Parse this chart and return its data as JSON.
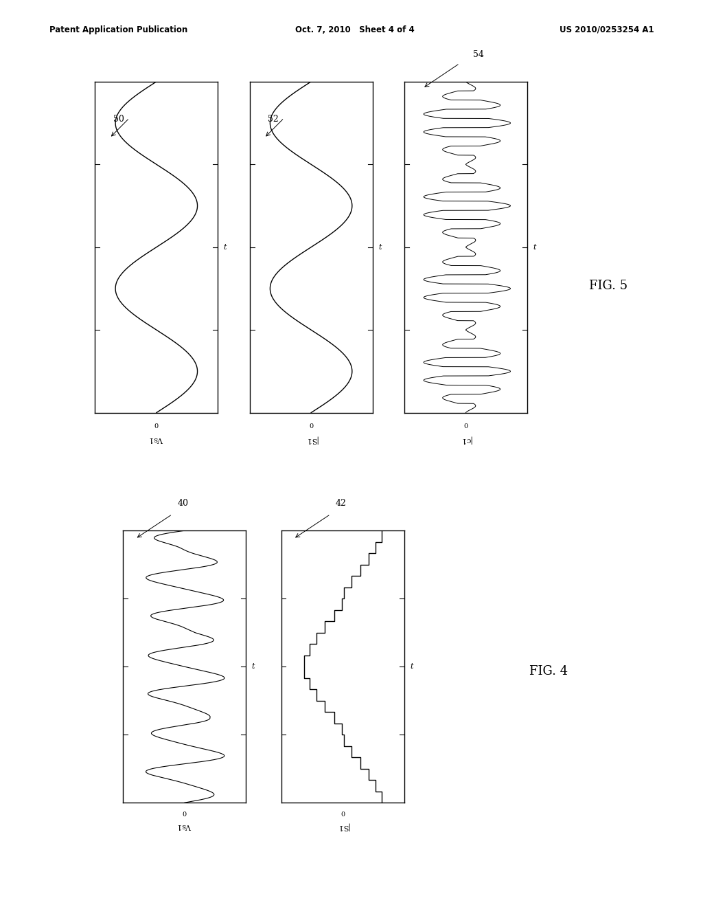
{
  "bg_color": "#ffffff",
  "header_left": "Patent Application Publication",
  "header_center": "Oct. 7, 2010   Sheet 4 of 4",
  "header_right": "US 2010/0253254 A1",
  "fig5_label": "FIG. 5",
  "fig4_label": "FIG. 4",
  "panel_line_color": "#000000",
  "panel_bg": "#ffffff"
}
